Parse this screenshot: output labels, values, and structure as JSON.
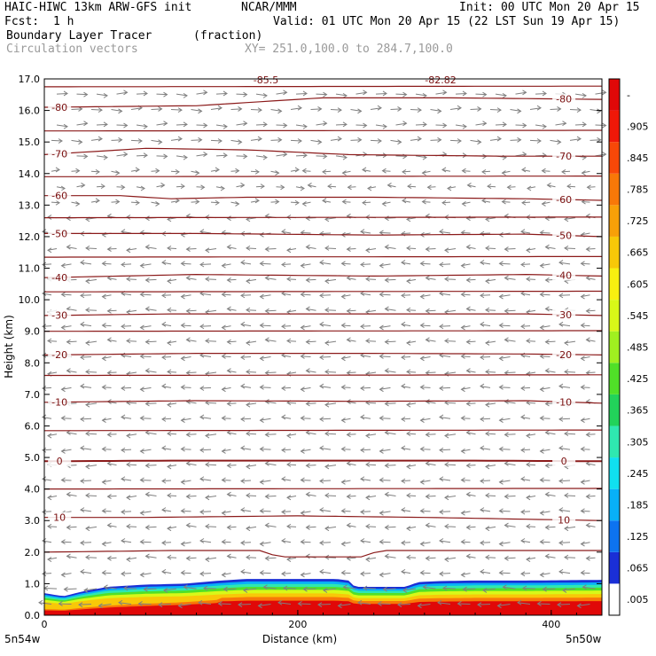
{
  "header": {
    "title_left": "HAIC-HIWC 13km ARW-GFS init",
    "org": "NCAR/MMM",
    "init": "Init: 00 UTC Mon 20 Apr 15",
    "fcst_label": "Fcst:",
    "fcst_value": "1 h",
    "valid": "Valid: 01 UTC Mon 20 Apr 15 (22 LST Sun 19 Apr 15)",
    "field_name": "Boundary Layer Tracer",
    "field_units": "(fraction)",
    "vectors_label": "Circulation vectors",
    "xy_range": "XY= 251.0,100.0 to 284.7,100.0"
  },
  "chart_data": {
    "type": "heatmap",
    "xlabel": "Distance (km)",
    "ylabel": "Height (km)",
    "xlim": [
      0,
      440
    ],
    "ylim": [
      0.0,
      17.0
    ],
    "x_ticks": [
      "0",
      "200",
      "400"
    ],
    "y_ticks": [
      "0.0",
      "1.0",
      "2.0",
      "3.0",
      "4.0",
      "5.0",
      "6.0",
      "7.0",
      "8.0",
      "9.0",
      "10.0",
      "11.0",
      "12.0",
      "13.0",
      "14.0",
      "15.0",
      "16.0",
      "17.0"
    ],
    "x_end_labels": {
      "left": "5n54w",
      "right": "5n50w"
    },
    "colorbar": {
      "labels": [
        ".005",
        ".065",
        ".125",
        ".185",
        ".245",
        ".305",
        ".365",
        ".425",
        ".485",
        ".545",
        ".605",
        ".665",
        ".725",
        ".785",
        ".845",
        ".905",
        "-"
      ],
      "colors": [
        "#ffffff",
        "#1a2fd6",
        "#0d73f0",
        "#08b0f8",
        "#10e0f0",
        "#2fe8b0",
        "#22d35a",
        "#50e028",
        "#a0f020",
        "#d8f818",
        "#f8f010",
        "#f8c808",
        "#f8a008",
        "#f87808",
        "#f84808",
        "#f01808",
        "#e00808"
      ]
    },
    "tracer_top_km": [
      [
        0,
        0.7
      ],
      [
        15,
        0.6
      ],
      [
        30,
        0.75
      ],
      [
        50,
        0.9
      ],
      [
        80,
        0.97
      ],
      [
        110,
        1.0
      ],
      [
        140,
        1.1
      ],
      [
        160,
        1.15
      ],
      [
        230,
        1.15
      ],
      [
        240,
        1.1
      ],
      [
        245,
        0.9
      ],
      [
        270,
        0.9
      ],
      [
        285,
        0.9
      ],
      [
        295,
        1.05
      ],
      [
        310,
        1.08
      ],
      [
        340,
        1.1
      ],
      [
        380,
        1.1
      ],
      [
        440,
        1.12
      ]
    ],
    "isotherms": [
      {
        "label": "10",
        "heights": [
          [
            0,
            3.1
          ],
          [
            80,
            3.1
          ],
          [
            200,
            3.15
          ],
          [
            300,
            3.1
          ],
          [
            440,
            3.0
          ]
        ]
      },
      {
        "label": "0",
        "heights": [
          [
            0,
            4.88
          ],
          [
            100,
            4.9
          ],
          [
            220,
            4.9
          ],
          [
            340,
            4.9
          ],
          [
            440,
            4.88
          ]
        ]
      },
      {
        "label": "-10",
        "heights": [
          [
            0,
            6.75
          ],
          [
            120,
            6.8
          ],
          [
            250,
            6.78
          ],
          [
            380,
            6.8
          ],
          [
            440,
            6.72
          ]
        ]
      },
      {
        "label": "-20",
        "heights": [
          [
            0,
            8.25
          ],
          [
            120,
            8.3
          ],
          [
            260,
            8.3
          ],
          [
            380,
            8.28
          ],
          [
            440,
            8.25
          ]
        ]
      },
      {
        "label": "-30",
        "heights": [
          [
            0,
            9.5
          ],
          [
            100,
            9.55
          ],
          [
            240,
            9.55
          ],
          [
            380,
            9.55
          ],
          [
            440,
            9.5
          ]
        ]
      },
      {
        "label": "-40",
        "heights": [
          [
            0,
            10.7
          ],
          [
            120,
            10.8
          ],
          [
            260,
            10.75
          ],
          [
            380,
            10.8
          ],
          [
            440,
            10.75
          ]
        ]
      },
      {
        "label": "-50",
        "heights": [
          [
            0,
            12.1
          ],
          [
            120,
            12.1
          ],
          [
            260,
            12.05
          ],
          [
            380,
            12.08
          ],
          [
            440,
            12.0
          ]
        ]
      },
      {
        "label": "-60",
        "heights": [
          [
            0,
            13.3
          ],
          [
            60,
            13.3
          ],
          [
            100,
            13.2
          ],
          [
            160,
            13.25
          ],
          [
            260,
            13.25
          ],
          [
            380,
            13.2
          ],
          [
            440,
            13.15
          ]
        ]
      },
      {
        "label": "-70",
        "heights": [
          [
            0,
            14.6
          ],
          [
            80,
            14.8
          ],
          [
            160,
            14.75
          ],
          [
            240,
            14.6
          ],
          [
            360,
            14.55
          ],
          [
            440,
            14.55
          ]
        ]
      },
      {
        "label": "-80",
        "heights": [
          [
            0,
            16.1
          ],
          [
            120,
            16.15
          ],
          [
            180,
            16.3
          ],
          [
            220,
            16.4
          ],
          [
            320,
            16.4
          ],
          [
            440,
            16.35
          ]
        ]
      }
    ],
    "extra_lines_km": [
      2.0,
      4.0,
      5.85,
      7.6,
      9.0,
      10.25,
      11.35,
      12.6,
      13.9,
      15.35,
      16.75
    ],
    "contour_top_labels": [
      "-85.5",
      "-82.82"
    ]
  },
  "colors": {
    "contour": "#8b1a1a",
    "vector": "#808080"
  }
}
